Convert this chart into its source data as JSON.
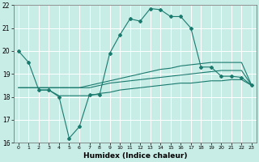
{
  "xlabel": "Humidex (Indice chaleur)",
  "ylabel": "",
  "bg_color": "#c8ece6",
  "grid_color": "#ffffff",
  "line_color": "#1a7a6e",
  "xlim": [
    -0.5,
    23.5
  ],
  "ylim": [
    16,
    22
  ],
  "xticks": [
    0,
    1,
    2,
    3,
    4,
    5,
    6,
    7,
    8,
    9,
    10,
    11,
    12,
    13,
    14,
    15,
    16,
    17,
    18,
    19,
    20,
    21,
    22,
    23
  ],
  "yticks": [
    16,
    17,
    18,
    19,
    20,
    21,
    22
  ],
  "line1_x": [
    0,
    1,
    2,
    3,
    4,
    5,
    6,
    7,
    8,
    9,
    10,
    11,
    12,
    13,
    14,
    15,
    16,
    17,
    18,
    19,
    20,
    21,
    22,
    23
  ],
  "line1_y": [
    20.0,
    19.5,
    18.3,
    18.3,
    18.0,
    16.2,
    16.7,
    18.1,
    18.1,
    19.9,
    20.7,
    21.4,
    21.3,
    21.85,
    21.8,
    21.5,
    21.5,
    21.0,
    19.3,
    19.3,
    18.9,
    18.9,
    18.85,
    18.5
  ],
  "line2_x": [
    0,
    1,
    2,
    3,
    4,
    5,
    6,
    7,
    8,
    9,
    10,
    11,
    12,
    13,
    14,
    15,
    16,
    17,
    18,
    19,
    20,
    21,
    22,
    23
  ],
  "line2_y": [
    18.4,
    18.4,
    18.4,
    18.4,
    18.4,
    18.4,
    18.4,
    18.5,
    18.6,
    18.7,
    18.8,
    18.9,
    19.0,
    19.1,
    19.2,
    19.25,
    19.35,
    19.4,
    19.45,
    19.5,
    19.5,
    19.5,
    19.5,
    18.5
  ],
  "line3_x": [
    0,
    1,
    2,
    3,
    4,
    5,
    6,
    7,
    8,
    9,
    10,
    11,
    12,
    13,
    14,
    15,
    16,
    17,
    18,
    19,
    20,
    21,
    22,
    23
  ],
  "line3_y": [
    18.4,
    18.4,
    18.4,
    18.4,
    18.4,
    18.4,
    18.4,
    18.4,
    18.5,
    18.6,
    18.65,
    18.7,
    18.75,
    18.8,
    18.85,
    18.9,
    18.95,
    19.0,
    19.05,
    19.1,
    19.15,
    19.15,
    19.15,
    18.5
  ],
  "line4_x": [
    2,
    3,
    4,
    5,
    6,
    7,
    8,
    9,
    10,
    11,
    12,
    13,
    14,
    15,
    16,
    17,
    18,
    19,
    20,
    21,
    22,
    23
  ],
  "line4_y": [
    18.3,
    18.3,
    18.05,
    18.05,
    18.05,
    18.05,
    18.15,
    18.2,
    18.3,
    18.35,
    18.4,
    18.45,
    18.5,
    18.55,
    18.6,
    18.6,
    18.65,
    18.7,
    18.7,
    18.75,
    18.75,
    18.5
  ]
}
